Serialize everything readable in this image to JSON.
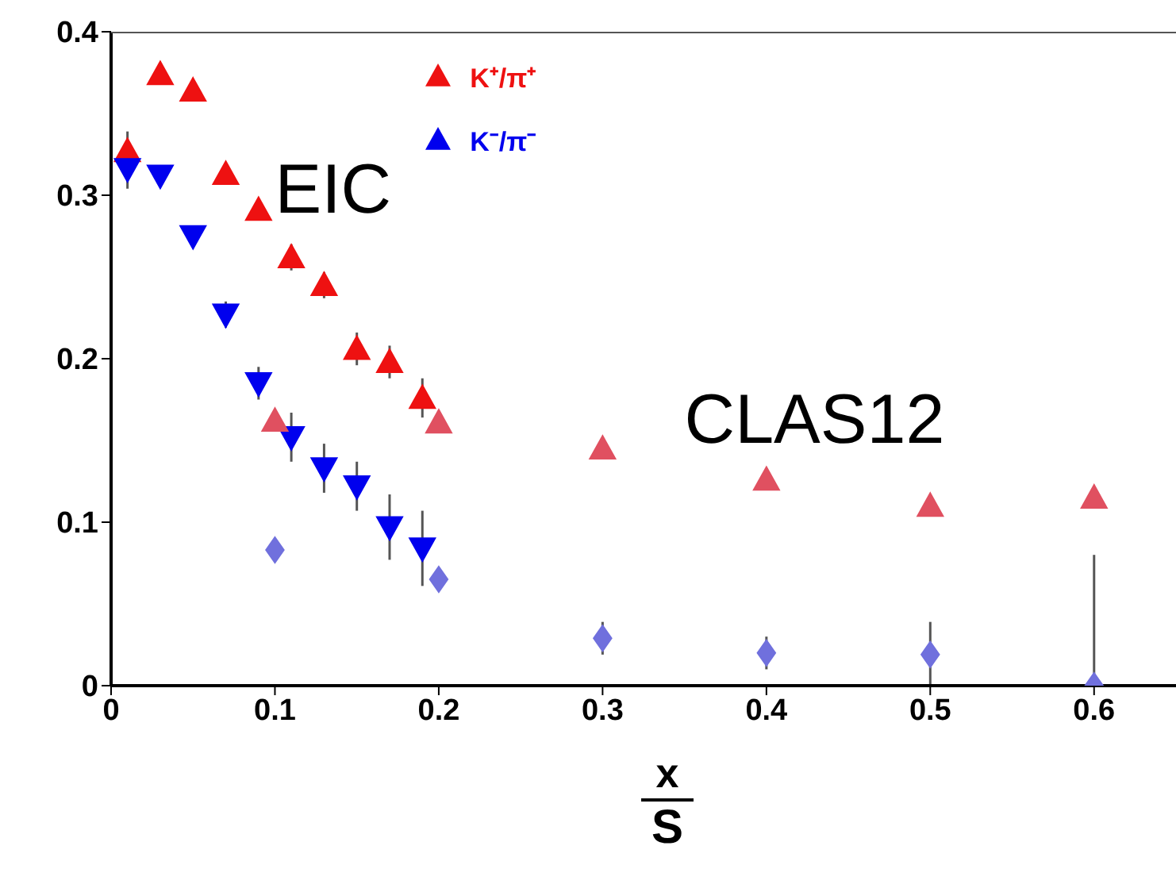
{
  "chart_data": {
    "type": "scatter",
    "xlabel": "x",
    "annotations": [
      "EIC",
      "CLAS12",
      "S"
    ],
    "xlim": [
      0,
      0.65
    ],
    "xticks": [
      0,
      0.1,
      0.2,
      0.3,
      0.4,
      0.5,
      0.6
    ],
    "ylim": [
      0,
      0.4
    ],
    "yticks": [
      0,
      0.1,
      0.2,
      0.3,
      0.4
    ],
    "grid": false,
    "legend": "top",
    "series": [
      {
        "name": "K⁺/π⁺",
        "color": "#ee1111",
        "marker": "triangle",
        "x": [
          0.01,
          0.03,
          0.05,
          0.07,
          0.09,
          0.11,
          0.13,
          0.15,
          0.17,
          0.19
        ],
        "values": [
          0.327,
          0.374,
          0.364,
          0.313,
          0.291,
          0.262,
          0.245,
          0.206,
          0.198,
          0.176
        ],
        "errors": [
          0.012,
          null,
          null,
          null,
          null,
          0.008,
          0.008,
          0.01,
          0.01,
          0.012
        ]
      },
      {
        "name": "K⁻/π⁻",
        "color": "#0000ee",
        "marker": "triangle-down",
        "x": [
          0.01,
          0.03,
          0.05,
          0.07,
          0.09,
          0.11,
          0.13,
          0.15,
          0.17,
          0.19
        ],
        "values": [
          0.316,
          0.312,
          0.275,
          0.227,
          0.185,
          0.152,
          0.133,
          0.122,
          0.097,
          0.084
        ],
        "errors": [
          0.012,
          null,
          null,
          0.008,
          0.01,
          0.015,
          0.015,
          0.015,
          0.02,
          0.023
        ]
      },
      {
        "color": "#e05060",
        "marker": "triangle",
        "x": [
          0.1,
          0.2,
          0.3,
          0.4,
          0.5,
          0.6
        ],
        "values": [
          0.162,
          0.161,
          0.145,
          0.126,
          0.11,
          0.115
        ]
      },
      {
        "color": "#7070dd",
        "marker": "diamond",
        "x": [
          0.1,
          0.2,
          0.3,
          0.4,
          0.5,
          0.6
        ],
        "values": [
          0.083,
          0.065,
          0.029,
          0.02,
          0.019,
          0
        ],
        "errors": [
          null,
          null,
          0.01,
          0.01,
          0.02,
          [
            0,
            0.08
          ]
        ]
      }
    ]
  }
}
